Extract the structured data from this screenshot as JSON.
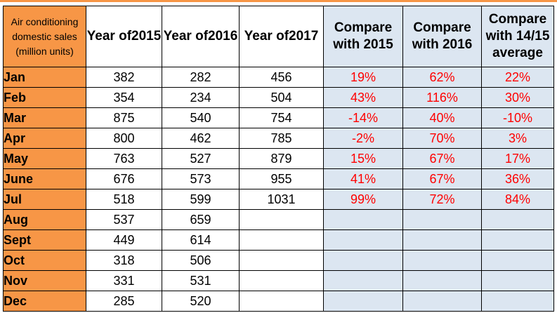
{
  "colors": {
    "label_bg": "#f79646",
    "compare_bg": "#dce6f1",
    "percent_text": "#ff0000",
    "border": "#000000"
  },
  "header": {
    "corner_lines": [
      "Air conditioning",
      "domestic sales",
      "(million units)"
    ],
    "year_2015_lines": [
      "Year of",
      "2015"
    ],
    "year_2016_lines": [
      "Year of",
      "2016"
    ],
    "year_2017_lines": [
      "Year of",
      "2017"
    ],
    "cmp_2015_lines": [
      "Compare",
      "with 2015"
    ],
    "cmp_2016_lines": [
      "Compare",
      "with 2016"
    ],
    "cmp_avg_lines": [
      "Compare",
      "with 14/15",
      "average"
    ]
  },
  "chart_data": {
    "type": "table",
    "columns": [
      "Year of 2015",
      "Year of 2016",
      "Year of 2017",
      "Compare with 2015",
      "Compare with 2016",
      "Compare with 14/15 average"
    ],
    "rows": [
      {
        "month": "Jan",
        "y2015": "382",
        "y2016": "282",
        "y2017": "456",
        "c2015": "19%",
        "c2016": "62%",
        "cavg": "22%"
      },
      {
        "month": "Feb",
        "y2015": "354",
        "y2016": "234",
        "y2017": "504",
        "c2015": "43%",
        "c2016": "116%",
        "cavg": "30%"
      },
      {
        "month": "Mar",
        "y2015": "875",
        "y2016": "540",
        "y2017": "754",
        "c2015": "-14%",
        "c2016": "40%",
        "cavg": "-10%"
      },
      {
        "month": "Apr",
        "y2015": "800",
        "y2016": "462",
        "y2017": "785",
        "c2015": "-2%",
        "c2016": "70%",
        "cavg": "3%"
      },
      {
        "month": "May",
        "y2015": "763",
        "y2016": "527",
        "y2017": "879",
        "c2015": "15%",
        "c2016": "67%",
        "cavg": "17%"
      },
      {
        "month": "June",
        "y2015": "676",
        "y2016": "573",
        "y2017": "955",
        "c2015": "41%",
        "c2016": "67%",
        "cavg": "36%"
      },
      {
        "month": "Jul",
        "y2015": "518",
        "y2016": "599",
        "y2017": "1031",
        "c2015": "99%",
        "c2016": "72%",
        "cavg": "84%"
      },
      {
        "month": "Aug",
        "y2015": "537",
        "y2016": "659",
        "y2017": "",
        "c2015": "",
        "c2016": "",
        "cavg": ""
      },
      {
        "month": "Sept",
        "y2015": "449",
        "y2016": "614",
        "y2017": "",
        "c2015": "",
        "c2016": "",
        "cavg": ""
      },
      {
        "month": "Oct",
        "y2015": "318",
        "y2016": "506",
        "y2017": "",
        "c2015": "",
        "c2016": "",
        "cavg": ""
      },
      {
        "month": "Nov",
        "y2015": "331",
        "y2016": "531",
        "y2017": "",
        "c2015": "",
        "c2016": "",
        "cavg": ""
      },
      {
        "month": "Dec",
        "y2015": "285",
        "y2016": "520",
        "y2017": "",
        "c2015": "",
        "c2016": "",
        "cavg": ""
      }
    ]
  }
}
